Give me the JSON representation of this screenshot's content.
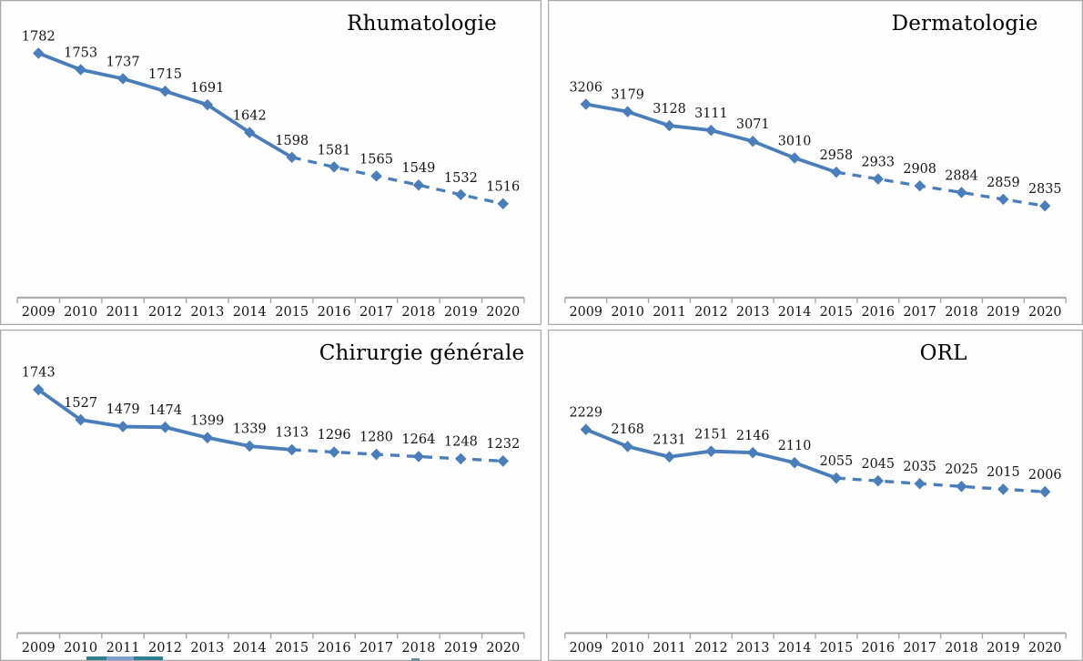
{
  "page": {
    "background": "#ffffff",
    "panel_border_color": "#a9a9a9",
    "bottom_cutoff_sliver": {
      "main_color": "#2e7f8e",
      "inner_color": "#7f9fd4",
      "small_mark_color": "#6e8f9e"
    }
  },
  "chart_data": [
    {
      "type": "line",
      "title": "Rhumatologie",
      "x": [
        "2009",
        "2010",
        "2011",
        "2012",
        "2013",
        "2014",
        "2015",
        "2016",
        "2017",
        "2018",
        "2019",
        "2020"
      ],
      "series": [
        {
          "name": "Rhumatologie",
          "values": [
            1782,
            1753,
            1737,
            1715,
            1691,
            1642,
            1598,
            1581,
            1565,
            1549,
            1532,
            1516
          ],
          "solid_until_index": 6,
          "solid_segment_years": "2009-2015",
          "dashed_segment_years": "2015-2020"
        }
      ],
      "data_labels": [
        1782,
        1753,
        1737,
        1715,
        1691,
        1642,
        1598,
        1581,
        1565,
        1549,
        1532,
        1516
      ],
      "xlabel": "",
      "ylabel": "",
      "ylim": [
        1350,
        1810
      ],
      "grid": false,
      "legend": "none",
      "marker": "diamond",
      "line_color": "#4a7ebb",
      "axis_color": "#a6a6a6",
      "text_color": "#141414"
    },
    {
      "type": "line",
      "title": "Dermatologie",
      "x": [
        "2009",
        "2010",
        "2011",
        "2012",
        "2013",
        "2014",
        "2015",
        "2016",
        "2017",
        "2018",
        "2019",
        "2020"
      ],
      "series": [
        {
          "name": "Dermatologie",
          "values": [
            3206,
            3179,
            3128,
            3111,
            3071,
            3010,
            2958,
            2933,
            2908,
            2884,
            2859,
            2835
          ],
          "solid_until_index": 6,
          "solid_segment_years": "2009-2015",
          "dashed_segment_years": "2015-2020"
        }
      ],
      "data_labels": [
        3206,
        3179,
        3128,
        3111,
        3071,
        3010,
        2958,
        2933,
        2908,
        2884,
        2859,
        2835
      ],
      "xlabel": "",
      "ylabel": "",
      "ylim": [
        2500,
        3450
      ],
      "grid": false,
      "legend": "none",
      "marker": "diamond",
      "line_color": "#4a7ebb",
      "axis_color": "#a6a6a6",
      "text_color": "#141414"
    },
    {
      "type": "line",
      "title": "Chirurgie générale",
      "x": [
        "2009",
        "2010",
        "2011",
        "2012",
        "2013",
        "2014",
        "2015",
        "2016",
        "2017",
        "2018",
        "2019",
        "2020"
      ],
      "series": [
        {
          "name": "Chirurgie générale",
          "values": [
            1743,
            1527,
            1479,
            1474,
            1399,
            1339,
            1313,
            1296,
            1280,
            1264,
            1248,
            1232
          ],
          "solid_until_index": 6,
          "solid_segment_years": "2009-2015",
          "dashed_segment_years": "2015-2020"
        }
      ],
      "data_labels": [
        1743,
        1527,
        1479,
        1474,
        1399,
        1339,
        1313,
        1296,
        1280,
        1264,
        1248,
        1232
      ],
      "xlabel": "",
      "ylabel": "",
      "ylim": [
        0,
        1900
      ],
      "grid": false,
      "legend": "none",
      "marker": "diamond",
      "line_color": "#4a7ebb",
      "axis_color": "#a6a6a6",
      "text_color": "#141414"
    },
    {
      "type": "line",
      "title": "ORL",
      "x": [
        "2009",
        "2010",
        "2011",
        "2012",
        "2013",
        "2014",
        "2015",
        "2016",
        "2017",
        "2018",
        "2019",
        "2020"
      ],
      "series": [
        {
          "name": "ORL",
          "values": [
            2229,
            2168,
            2131,
            2151,
            2146,
            2110,
            2055,
            2045,
            2035,
            2025,
            2015,
            2006
          ],
          "solid_until_index": 6,
          "solid_segment_years": "2009-2015",
          "dashed_segment_years": "2015-2020"
        }
      ],
      "data_labels": [
        2229,
        2168,
        2131,
        2151,
        2146,
        2110,
        2055,
        2045,
        2035,
        2025,
        2015,
        2006
      ],
      "xlabel": "",
      "ylabel": "",
      "ylim": [
        1500,
        2450
      ],
      "grid": false,
      "legend": "none",
      "marker": "diamond",
      "line_color": "#4a7ebb",
      "axis_color": "#a6a6a6",
      "text_color": "#141414"
    }
  ]
}
